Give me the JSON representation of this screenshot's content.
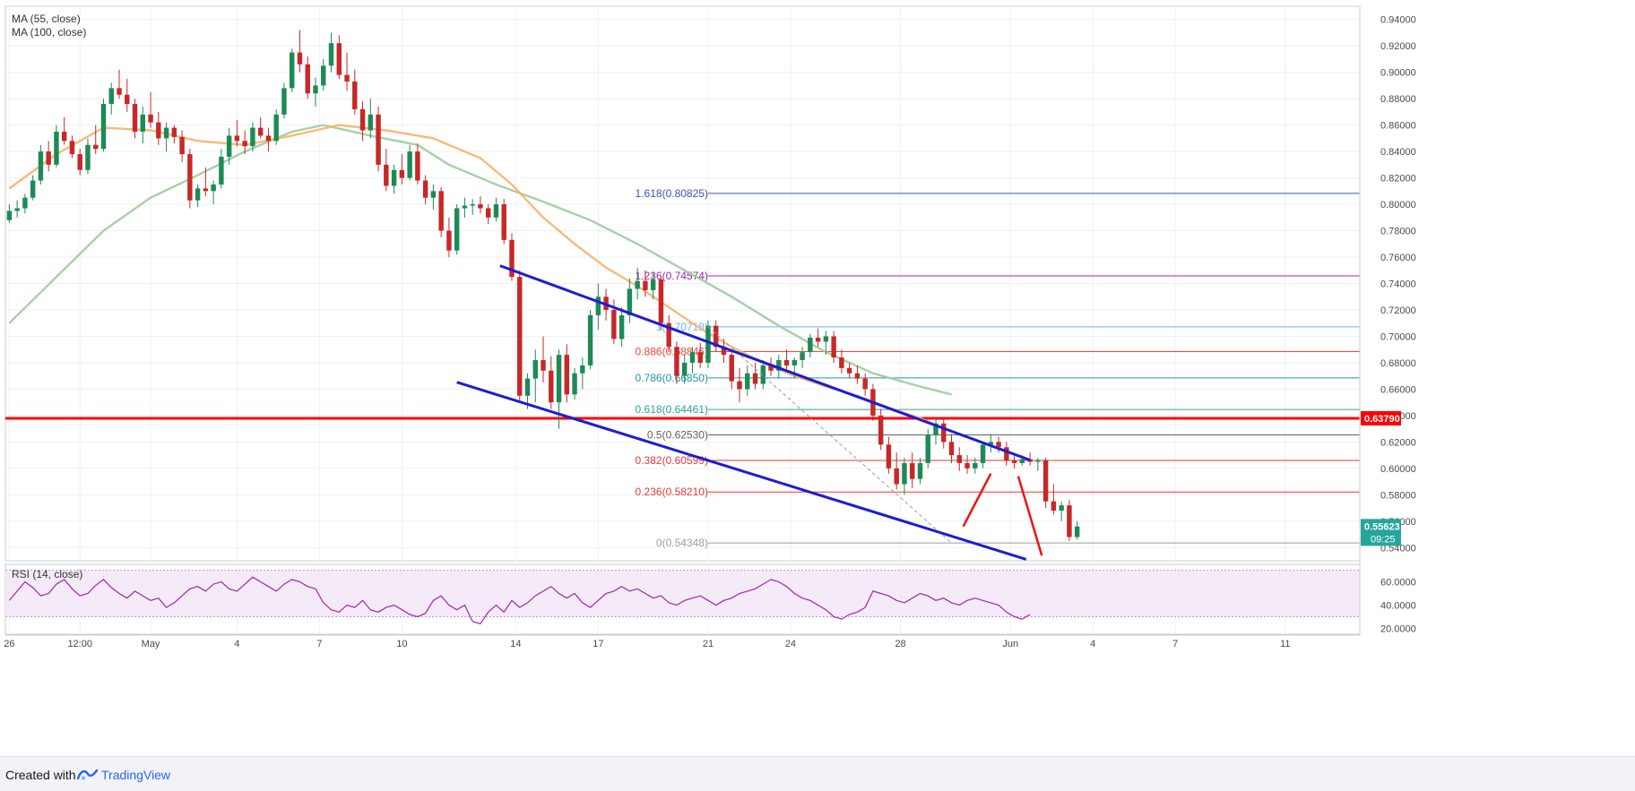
{
  "chart_data": {
    "type": "candlestick",
    "indicators": [
      {
        "name": "MA (55, close)",
        "color": "#f6b26b"
      },
      {
        "name": "MA (100, close)",
        "color": "#9ccc9c"
      }
    ],
    "price_axis": {
      "min": 0.53,
      "max": 0.95,
      "ticks": [
        "0.94000",
        "0.92000",
        "0.90000",
        "0.88000",
        "0.86000",
        "0.84000",
        "0.82000",
        "0.80000",
        "0.78000",
        "0.76000",
        "0.74000",
        "0.72000",
        "0.70000",
        "0.68000",
        "0.66000",
        "0.64000",
        "0.62000",
        "0.60000",
        "0.58000",
        "0.56000",
        "0.54000"
      ],
      "current_price": "0.55623",
      "countdown": "09:25",
      "current_price_value": 0.55623
    },
    "horizontal_level": {
      "value": 0.6379,
      "label": "0.63790",
      "color": "#ff0000"
    },
    "fibonacci_levels": [
      {
        "label": "1.618(0.80825)",
        "value": 0.80825,
        "color": "#3f51b5"
      },
      {
        "label": "1.236(0.74574)",
        "value": 0.74574,
        "color": "#9c27b0"
      },
      {
        "label": "1(0.70718)",
        "value": 0.70718,
        "color": "#64b5f6"
      },
      {
        "label": "0.886(0.68846)",
        "value": 0.68846,
        "color": "#f44336"
      },
      {
        "label": "0.786(0.66850)",
        "value": 0.6685,
        "color": "#2196a3"
      },
      {
        "label": "0.618(0.64461)",
        "value": 0.64461,
        "color": "#26a69a"
      },
      {
        "label": "0.5(0.62530)",
        "value": 0.6253,
        "color": "#616161"
      },
      {
        "label": "0.382(0.60599)",
        "value": 0.60599,
        "color": "#e53935"
      },
      {
        "label": "0.236(0.58210)",
        "value": 0.5821,
        "color": "#e53935"
      },
      {
        "label": "0(0.54348)",
        "value": 0.54348,
        "color": "#9e9e9e"
      }
    ],
    "x_axis": {
      "ticks": [
        {
          "label": "26",
          "x": 0.0
        },
        {
          "label": "12:00",
          "x": 9.0
        },
        {
          "label": "May",
          "x": 18.0
        },
        {
          "label": "4",
          "x": 29.0
        },
        {
          "label": "7",
          "x": 39.5
        },
        {
          "label": "10",
          "x": 50.0
        },
        {
          "label": "14",
          "x": 64.5
        },
        {
          "label": "17",
          "x": 75.0
        },
        {
          "label": "21",
          "x": 89.0
        },
        {
          "label": "24",
          "x": 99.5
        },
        {
          "label": "28",
          "x": 113.5
        },
        {
          "label": "Jun",
          "x": 127.5
        },
        {
          "label": "4",
          "x": 138.0
        },
        {
          "label": "7",
          "x": 148.5
        },
        {
          "label": "11",
          "x": 162.5
        }
      ],
      "min": -0.5,
      "max": 172
    },
    "candles": [
      [
        0.788,
        0.8,
        0.786,
        0.795
      ],
      [
        0.795,
        0.803,
        0.79,
        0.797
      ],
      [
        0.797,
        0.808,
        0.793,
        0.805
      ],
      [
        0.805,
        0.822,
        0.803,
        0.818
      ],
      [
        0.818,
        0.845,
        0.815,
        0.84
      ],
      [
        0.84,
        0.848,
        0.825,
        0.83
      ],
      [
        0.83,
        0.86,
        0.828,
        0.855
      ],
      [
        0.855,
        0.866,
        0.845,
        0.848
      ],
      [
        0.848,
        0.852,
        0.835,
        0.838
      ],
      [
        0.838,
        0.842,
        0.822,
        0.826
      ],
      [
        0.826,
        0.85,
        0.823,
        0.845
      ],
      [
        0.845,
        0.86,
        0.838,
        0.842
      ],
      [
        0.842,
        0.88,
        0.84,
        0.876
      ],
      [
        0.876,
        0.892,
        0.868,
        0.888
      ],
      [
        0.888,
        0.902,
        0.88,
        0.883
      ],
      [
        0.883,
        0.895,
        0.87,
        0.876
      ],
      [
        0.876,
        0.88,
        0.85,
        0.855
      ],
      [
        0.855,
        0.874,
        0.846,
        0.868
      ],
      [
        0.868,
        0.885,
        0.858,
        0.862
      ],
      [
        0.862,
        0.87,
        0.845,
        0.85
      ],
      [
        0.85,
        0.862,
        0.84,
        0.858
      ],
      [
        0.858,
        0.86,
        0.846,
        0.851
      ],
      [
        0.851,
        0.856,
        0.832,
        0.838
      ],
      [
        0.838,
        0.842,
        0.797,
        0.803
      ],
      [
        0.803,
        0.815,
        0.798,
        0.812
      ],
      [
        0.812,
        0.828,
        0.806,
        0.81
      ],
      [
        0.81,
        0.818,
        0.8,
        0.815
      ],
      [
        0.815,
        0.842,
        0.812,
        0.836
      ],
      [
        0.836,
        0.858,
        0.83,
        0.852
      ],
      [
        0.852,
        0.864,
        0.844,
        0.848
      ],
      [
        0.848,
        0.856,
        0.838,
        0.844
      ],
      [
        0.844,
        0.862,
        0.84,
        0.858
      ],
      [
        0.858,
        0.866,
        0.85,
        0.852
      ],
      [
        0.852,
        0.858,
        0.84,
        0.848
      ],
      [
        0.848,
        0.872,
        0.845,
        0.868
      ],
      [
        0.868,
        0.892,
        0.865,
        0.888
      ],
      [
        0.888,
        0.918,
        0.885,
        0.915
      ],
      [
        0.915,
        0.932,
        0.9,
        0.906
      ],
      [
        0.906,
        0.912,
        0.88,
        0.884
      ],
      [
        0.884,
        0.896,
        0.874,
        0.89
      ],
      [
        0.89,
        0.91,
        0.886,
        0.905
      ],
      [
        0.905,
        0.93,
        0.9,
        0.922
      ],
      [
        0.922,
        0.928,
        0.895,
        0.898
      ],
      [
        0.898,
        0.915,
        0.886,
        0.893
      ],
      [
        0.893,
        0.902,
        0.868,
        0.872
      ],
      [
        0.872,
        0.878,
        0.848,
        0.856
      ],
      [
        0.856,
        0.88,
        0.85,
        0.868
      ],
      [
        0.868,
        0.874,
        0.825,
        0.83
      ],
      [
        0.83,
        0.842,
        0.81,
        0.814
      ],
      [
        0.814,
        0.83,
        0.808,
        0.826
      ],
      [
        0.826,
        0.838,
        0.815,
        0.82
      ],
      [
        0.82,
        0.845,
        0.818,
        0.84
      ],
      [
        0.84,
        0.846,
        0.815,
        0.818
      ],
      [
        0.818,
        0.822,
        0.8,
        0.805
      ],
      [
        0.805,
        0.815,
        0.796,
        0.81
      ],
      [
        0.81,
        0.813,
        0.775,
        0.78
      ],
      [
        0.78,
        0.79,
        0.76,
        0.765
      ],
      [
        0.765,
        0.8,
        0.762,
        0.797
      ],
      [
        0.797,
        0.805,
        0.79,
        0.799
      ],
      [
        0.799,
        0.804,
        0.792,
        0.8
      ],
      [
        0.8,
        0.806,
        0.793,
        0.797
      ],
      [
        0.797,
        0.8,
        0.785,
        0.79
      ],
      [
        0.79,
        0.805,
        0.787,
        0.8
      ],
      [
        0.8,
        0.804,
        0.77,
        0.773
      ],
      [
        0.773,
        0.778,
        0.742,
        0.745
      ],
      [
        0.745,
        0.75,
        0.65,
        0.655
      ],
      [
        0.655,
        0.672,
        0.645,
        0.668
      ],
      [
        0.668,
        0.69,
        0.65,
        0.682
      ],
      [
        0.682,
        0.7,
        0.665,
        0.674
      ],
      [
        0.674,
        0.685,
        0.645,
        0.65
      ],
      [
        0.65,
        0.69,
        0.63,
        0.686
      ],
      [
        0.686,
        0.694,
        0.65,
        0.656
      ],
      [
        0.656,
        0.676,
        0.652,
        0.672
      ],
      [
        0.672,
        0.684,
        0.66,
        0.678
      ],
      [
        0.678,
        0.72,
        0.675,
        0.716
      ],
      [
        0.716,
        0.74,
        0.705,
        0.73
      ],
      [
        0.73,
        0.736,
        0.712,
        0.72
      ],
      [
        0.72,
        0.728,
        0.694,
        0.698
      ],
      [
        0.698,
        0.722,
        0.692,
        0.716
      ],
      [
        0.716,
        0.744,
        0.71,
        0.736
      ],
      [
        0.736,
        0.752,
        0.728,
        0.742
      ],
      [
        0.742,
        0.75,
        0.73,
        0.735
      ],
      [
        0.735,
        0.748,
        0.728,
        0.743
      ],
      [
        0.743,
        0.746,
        0.705,
        0.71
      ],
      [
        0.71,
        0.716,
        0.688,
        0.692
      ],
      [
        0.692,
        0.696,
        0.664,
        0.67
      ],
      [
        0.67,
        0.686,
        0.664,
        0.68
      ],
      [
        0.68,
        0.692,
        0.672,
        0.688
      ],
      [
        0.688,
        0.695,
        0.676,
        0.68
      ],
      [
        0.68,
        0.712,
        0.676,
        0.708
      ],
      [
        0.708,
        0.712,
        0.688,
        0.692
      ],
      [
        0.692,
        0.698,
        0.68,
        0.686
      ],
      [
        0.686,
        0.69,
        0.66,
        0.666
      ],
      [
        0.666,
        0.676,
        0.65,
        0.66
      ],
      [
        0.66,
        0.678,
        0.655,
        0.672
      ],
      [
        0.672,
        0.68,
        0.66,
        0.664
      ],
      [
        0.664,
        0.682,
        0.66,
        0.678
      ],
      [
        0.678,
        0.684,
        0.67,
        0.674
      ],
      [
        0.674,
        0.686,
        0.668,
        0.682
      ],
      [
        0.682,
        0.69,
        0.675,
        0.678
      ],
      [
        0.678,
        0.684,
        0.668,
        0.682
      ],
      [
        0.682,
        0.692,
        0.676,
        0.688
      ],
      [
        0.688,
        0.702,
        0.684,
        0.699
      ],
      [
        0.699,
        0.706,
        0.692,
        0.696
      ],
      [
        0.696,
        0.704,
        0.686,
        0.7
      ],
      [
        0.7,
        0.704,
        0.68,
        0.684
      ],
      [
        0.684,
        0.69,
        0.672,
        0.676
      ],
      [
        0.676,
        0.68,
        0.668,
        0.672
      ],
      [
        0.672,
        0.678,
        0.664,
        0.668
      ],
      [
        0.668,
        0.672,
        0.655,
        0.66
      ],
      [
        0.66,
        0.664,
        0.636,
        0.64
      ],
      [
        0.64,
        0.645,
        0.614,
        0.618
      ],
      [
        0.618,
        0.624,
        0.596,
        0.6
      ],
      [
        0.6,
        0.612,
        0.584,
        0.588
      ],
      [
        0.588,
        0.608,
        0.58,
        0.604
      ],
      [
        0.604,
        0.612,
        0.585,
        0.592
      ],
      [
        0.592,
        0.608,
        0.588,
        0.604
      ],
      [
        0.604,
        0.63,
        0.6,
        0.625
      ],
      [
        0.625,
        0.638,
        0.618,
        0.634
      ],
      [
        0.634,
        0.638,
        0.615,
        0.62
      ],
      [
        0.62,
        0.626,
        0.604,
        0.61
      ],
      [
        0.61,
        0.616,
        0.598,
        0.604
      ],
      [
        0.604,
        0.61,
        0.596,
        0.6
      ],
      [
        0.6,
        0.608,
        0.596,
        0.604
      ],
      [
        0.604,
        0.62,
        0.6,
        0.618
      ],
      [
        0.618,
        0.626,
        0.612,
        0.62
      ],
      [
        0.62,
        0.624,
        0.612,
        0.616
      ],
      [
        0.616,
        0.62,
        0.602,
        0.606
      ],
      [
        0.606,
        0.61,
        0.6,
        0.604
      ],
      [
        0.604,
        0.61,
        0.602,
        0.607
      ],
      [
        0.607,
        0.612,
        0.602,
        0.605
      ],
      [
        0.605,
        0.608,
        0.598,
        0.606
      ],
      [
        0.606,
        0.608,
        0.57,
        0.575
      ],
      [
        0.575,
        0.588,
        0.565,
        0.568
      ],
      [
        0.568,
        0.575,
        0.56,
        0.572
      ],
      [
        0.572,
        0.576,
        0.545,
        0.548
      ],
      [
        0.548,
        0.56,
        0.546,
        0.556
      ]
    ],
    "ma55": [
      [
        0,
        0.812
      ],
      [
        6,
        0.838
      ],
      [
        12,
        0.858
      ],
      [
        18,
        0.856
      ],
      [
        24,
        0.848
      ],
      [
        30,
        0.845
      ],
      [
        36,
        0.852
      ],
      [
        42,
        0.86
      ],
      [
        48,
        0.856
      ],
      [
        54,
        0.85
      ],
      [
        60,
        0.835
      ],
      [
        64,
        0.815
      ],
      [
        68,
        0.79
      ],
      [
        72,
        0.77
      ],
      [
        76,
        0.752
      ],
      [
        80,
        0.738
      ],
      [
        84,
        0.722
      ],
      [
        88,
        0.706
      ],
      [
        92,
        0.692
      ],
      [
        96,
        0.68
      ],
      [
        100,
        0.67
      ],
      [
        104,
        0.662
      ],
      [
        108,
        0.655
      ],
      [
        112,
        0.646
      ],
      [
        116,
        0.638
      ],
      [
        120,
        0.628
      ]
    ],
    "ma100": [
      [
        0,
        0.71
      ],
      [
        6,
        0.745
      ],
      [
        12,
        0.78
      ],
      [
        18,
        0.805
      ],
      [
        24,
        0.822
      ],
      [
        30,
        0.84
      ],
      [
        36,
        0.855
      ],
      [
        40,
        0.86
      ],
      [
        46,
        0.852
      ],
      [
        52,
        0.845
      ],
      [
        56,
        0.83
      ],
      [
        62,
        0.815
      ],
      [
        68,
        0.802
      ],
      [
        74,
        0.788
      ],
      [
        80,
        0.77
      ],
      [
        86,
        0.75
      ],
      [
        92,
        0.73
      ],
      [
        98,
        0.708
      ],
      [
        104,
        0.688
      ],
      [
        110,
        0.672
      ],
      [
        116,
        0.662
      ],
      [
        120,
        0.656
      ]
    ],
    "channel_lines": [
      {
        "from": [
          62.5,
          0.7535
        ],
        "to": [
          130.0,
          0.6063
        ]
      },
      {
        "from": [
          57.0,
          0.6652
        ],
        "to": [
          129.5,
          0.5311
        ]
      }
    ],
    "dashed_line": {
      "from": [
        89.0,
        0.7072
      ],
      "to": [
        120.0,
        0.5435
      ]
    },
    "forecast_arrows": [
      {
        "from": [
          121.5,
          0.556
        ],
        "to": [
          125.0,
          0.596
        ]
      },
      {
        "from": [
          128.5,
          0.594
        ],
        "to": [
          131.5,
          0.534
        ]
      }
    ],
    "rsi": {
      "label": "RSI (14, close)",
      "ticks": [
        "60.0000",
        "40.0000",
        "20.0000"
      ],
      "min": 15,
      "max": 75,
      "upper": 70,
      "lower": 30,
      "values": [
        44,
        52,
        60,
        55,
        48,
        50,
        58,
        62,
        54,
        48,
        50,
        57,
        62,
        55,
        50,
        46,
        52,
        48,
        44,
        46,
        38,
        42,
        48,
        54,
        56,
        52,
        58,
        60,
        54,
        52,
        58,
        64,
        60,
        56,
        52,
        58,
        62,
        60,
        56,
        54,
        42,
        36,
        34,
        40,
        38,
        44,
        36,
        34,
        38,
        40,
        36,
        32,
        30,
        33,
        44,
        48,
        40,
        36,
        40,
        26,
        24,
        34,
        40,
        34,
        44,
        38,
        42,
        48,
        52,
        56,
        50,
        46,
        50,
        42,
        38,
        44,
        50,
        52,
        56,
        52,
        54,
        50,
        46,
        48,
        42,
        40,
        44,
        46,
        48,
        44,
        40,
        44,
        46,
        50,
        52,
        54,
        58,
        62,
        60,
        56,
        50,
        46,
        44,
        40,
        36,
        30,
        28,
        32,
        34,
        38,
        52,
        50,
        48,
        44,
        42,
        46,
        50,
        48,
        44,
        46,
        42,
        40,
        44,
        46,
        44,
        42,
        40,
        34,
        30,
        28,
        32
      ]
    }
  },
  "footer": {
    "created_with": "Created with",
    "brand": "TradingView"
  }
}
